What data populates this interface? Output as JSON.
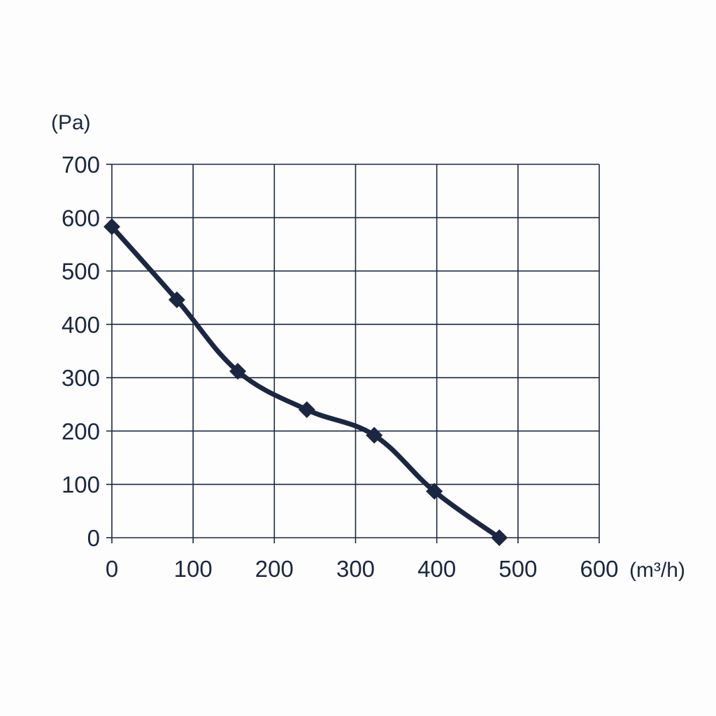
{
  "chart_data": {
    "type": "line",
    "title": "",
    "xlabel": "(m³/h)",
    "ylabel": "(Pa)",
    "xlim": [
      0,
      600
    ],
    "ylim": [
      0,
      700
    ],
    "x_ticks": [
      "0",
      "100",
      "200",
      "300",
      "400",
      "500",
      "600"
    ],
    "y_ticks": [
      "0",
      "100",
      "200",
      "300",
      "400",
      "500",
      "600",
      "700"
    ],
    "grid": true,
    "legend": "none",
    "series": [
      {
        "marker": "diamond",
        "color": "#1b2742",
        "x": [
          0,
          80,
          155,
          240,
          323,
          397,
          477
        ],
        "y": [
          583,
          446,
          312,
          240,
          192,
          87,
          0
        ]
      }
    ]
  }
}
